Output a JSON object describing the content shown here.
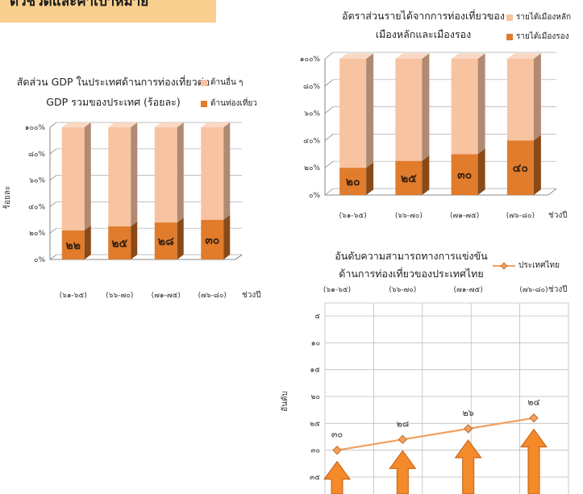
{
  "header": {
    "title": "ตัวชี้วัดและค่าเป้าหมาย"
  },
  "colors": {
    "light": "#f8c3a0",
    "light_top": "#fbd8c2",
    "light_side": "#b08a73",
    "dark": "#e07c2c",
    "dark_side": "#8a4a18",
    "line": "#f0a060",
    "arrow": "#f58a2a",
    "header_bg": "#f8cf8e"
  },
  "chart_data": [
    {
      "id": "gdp",
      "type": "bar",
      "title_lines": [
        "สัดส่วน GDP ในประเทศด้านการท่องเที่ยวต่อ",
        "GDP รวมของประเทศ (ร้อยละ)"
      ],
      "ylabel": "ร้อยละ",
      "xlabel": "ช่วงปี",
      "ylim": [
        0,
        100
      ],
      "yticks": [
        "๐%",
        "๒๐%",
        "๔๐%",
        "๖๐%",
        "๘๐%",
        "๑๐๐%"
      ],
      "categories": [
        "(๖๑-๖๕)",
        "(๖๖-๗๐)",
        "(๗๑-๗๕)",
        "(๗๖-๘๐)"
      ],
      "series": [
        {
          "name": "ด้านท่องเที่ยว",
          "values": [
            22,
            25,
            28,
            30
          ],
          "labels": [
            "๒๒",
            "๒๕",
            "๒๘",
            "๓๐"
          ]
        },
        {
          "name": "ด้านอื่น ๆ",
          "values": [
            78,
            75,
            72,
            70
          ]
        }
      ],
      "stacked": true,
      "legend": "top-right"
    },
    {
      "id": "income",
      "type": "bar",
      "title_lines": [
        "อัตราส่วนรายได้จากการท่องเที่ยวของ",
        "เมืองหลักและเมืองรอง"
      ],
      "xlabel": "ช่วงปี",
      "ylim": [
        0,
        100
      ],
      "yticks": [
        "๐%",
        "๒๐%",
        "๔๐%",
        "๖๐%",
        "๘๐%",
        "๑๐๐%"
      ],
      "categories": [
        "(๖๑-๖๕)",
        "(๖๖-๗๐)",
        "(๗๑-๗๕)",
        "(๗๖-๘๐)"
      ],
      "series": [
        {
          "name": "รายได้เมืองรอง",
          "values": [
            20,
            25,
            30,
            40
          ],
          "labels": [
            "๒๐",
            "๒๕",
            "๓๐",
            "๔๐"
          ]
        },
        {
          "name": "รายได้เมืองหลัก",
          "values": [
            80,
            75,
            70,
            60
          ]
        }
      ],
      "stacked": true,
      "legend": "top-right"
    },
    {
      "id": "rank",
      "type": "line",
      "title_lines": [
        "อันดับความสามารถทางการแข่งขัน",
        "ด้านการท่องเที่ยวของประเทศไทย"
      ],
      "ylabel": "อันดับ",
      "xlabel": "ช่วงปี",
      "categories": [
        "(๖๑-๖๕)",
        "(๖๖-๗๐)",
        "(๗๑-๗๕)",
        "(๗๖-๘๐)"
      ],
      "yticks": [
        "๕",
        "๑๐",
        "๑๕",
        "๒๐",
        "๒๕",
        "๓๐",
        "๓๕",
        "๔๐"
      ],
      "ylim": [
        40,
        0
      ],
      "reversed": true,
      "series": [
        {
          "name": "ประเทศไทย",
          "values": [
            30,
            28,
            26,
            24
          ],
          "labels": [
            "๓๐",
            "๒๘",
            "๒๖",
            "๒๔"
          ]
        }
      ],
      "legend": "top-right"
    }
  ]
}
